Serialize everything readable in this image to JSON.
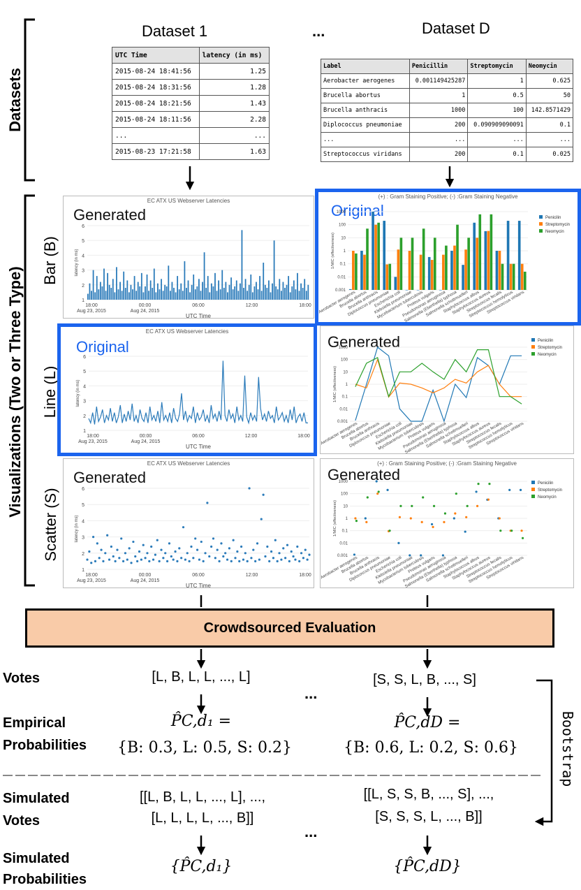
{
  "datasets_label": "Datasets",
  "visualizations_label": "Visualizations (Two or Three Type)",
  "row_labels": [
    "Bar (B)",
    "Line (L)",
    "Scatter (S)"
  ],
  "ellipsis": "...",
  "dataset1": {
    "title": "Dataset 1",
    "headers": [
      "UTC Time",
      "latency (in ms)"
    ],
    "rows": [
      [
        "2015-08-24 18:41:56",
        "1.25"
      ],
      [
        "2015-08-24 18:31:56",
        "1.28"
      ],
      [
        "2015-08-24 18:21:56",
        "1.43"
      ],
      [
        "2015-08-24 18:11:56",
        "2.28"
      ],
      [
        "...",
        "..."
      ],
      [
        "2015-08-23 17:21:58",
        "1.63"
      ]
    ]
  },
  "datasetD": {
    "title": "Dataset D",
    "headers": [
      "Label",
      "Penicillin",
      "Streptomycin",
      "Neomycin"
    ],
    "rows": [
      [
        "Aerobacter aerogenes",
        "0.001149425287",
        "1",
        "0.625"
      ],
      [
        "Brucella abortus",
        "1",
        "0.5",
        "50"
      ],
      [
        "Brucella anthracis",
        "1000",
        "100",
        "142.8571429"
      ],
      [
        "Diplococcus pneumoniae",
        "200",
        "0.090909090091",
        "0.1"
      ],
      [
        "...",
        "...",
        "...",
        "..."
      ],
      [
        "Streptococcus viridans",
        "200",
        "0.1",
        "0.025"
      ]
    ]
  },
  "latency_charts": {
    "title": "EC ATX US Webserver Latencies",
    "xlabel": "UTC Time",
    "ylabel": "latency (in ms)",
    "x_ticks": [
      "18:00\nAug 23, 2015",
      "00:00\nAug 24, 2015",
      "06:00",
      "12:00",
      "18:00"
    ],
    "y_ticks": [
      "1",
      "2",
      "3",
      "4",
      "5",
      "6"
    ],
    "bar_tag": "Generated",
    "line_tag": "Original",
    "scatter_tag": "Generated"
  },
  "antibiotic_charts": {
    "subtitle": "(+)  : Gram Staining Positive;   (-)  :Gram Staining Negative",
    "ylabel": "1/MIC (effectiveness)",
    "y_ticks": [
      "0.001",
      "0.01",
      "0.1",
      "1",
      "10",
      "100",
      "1000"
    ],
    "bar_tag": "Original",
    "line_tag": "Generated",
    "scatter_tag": "Generated",
    "legend": [
      "Penicilin",
      "Streptomycin",
      "Neomycin"
    ],
    "colors": [
      "#1f77b4",
      "#ff7f0e",
      "#2ca02c"
    ],
    "categories": [
      "Aerobacter aerogenes",
      "Brucella abortus",
      "Brucella anthracis",
      "Diplococcus pneumoniae",
      "Escherichia coli",
      "Klebsiella pneumoniae",
      "Mycobacterium tuberculosis",
      "Proteus vulgaris",
      "Pseudomonas aeruginosa",
      "Salmonella (Eberthella) typhosa",
      "Salmonella schottmuelleri",
      "Staphylococcus albus",
      "Staphylococcus aureus",
      "Streptococcus fecalis",
      "Streptococcus hemolyticus",
      "Streptococcus viridans"
    ]
  },
  "chart_data": [
    {
      "type": "bar",
      "title": "EC ATX US Webserver Latencies",
      "xlabel": "UTC Time",
      "ylabel": "latency (in ms)",
      "ylim": [
        1,
        6
      ],
      "values": [
        1.4,
        2.1,
        1.6,
        3.0,
        1.5,
        2.6,
        1.7,
        2.2,
        1.9,
        3.1,
        1.6,
        2.8,
        2.0,
        1.8,
        2.4,
        1.5,
        3.2,
        1.7,
        2.2,
        1.6,
        2.9,
        1.8,
        2.3,
        1.5,
        2.0,
        1.7,
        2.6,
        1.6,
        2.2,
        1.9,
        2.8,
        1.5,
        1.9,
        2.7,
        1.6,
        2.3,
        1.8,
        3.1,
        1.5,
        2.1,
        1.7,
        2.4,
        1.6,
        2.0,
        1.9,
        3.3,
        1.6,
        2.2,
        1.8,
        1.5,
        2.6,
        1.7,
        2.1,
        1.6,
        3.6,
        1.8,
        2.3,
        1.5,
        2.0,
        2.7,
        1.7,
        1.9,
        2.4,
        1.6,
        2.2,
        4.2,
        1.8,
        2.6,
        1.5,
        2.1,
        1.9,
        2.8,
        1.6,
        2.3,
        1.7,
        3.0,
        1.8,
        2.2,
        1.5,
        2.0,
        2.5,
        1.7,
        1.9,
        2.3,
        1.6,
        2.1,
        5.7,
        1.8,
        2.4,
        1.6,
        2.0,
        2.7,
        1.5,
        1.9,
        2.2,
        1.7,
        2.6,
        1.6,
        3.5,
        2.0,
        1.8,
        2.3,
        1.5,
        2.1,
        5.0,
        1.9,
        1.7,
        2.4,
        1.6,
        2.2,
        1.8,
        2.0,
        2.6,
        1.5,
        1.9,
        2.3,
        1.7,
        2.8,
        1.6,
        2.1,
        1.8,
        2.4,
        1.6,
        2.0
      ]
    },
    {
      "type": "line",
      "title": "EC ATX US Webserver Latencies",
      "xlabel": "UTC Time",
      "ylabel": "latency (in ms)",
      "ylim": [
        1,
        6
      ],
      "values": [
        1.8,
        1.5,
        2.2,
        1.4,
        2.6,
        1.6,
        1.9,
        2.4,
        1.5,
        2.0,
        1.7,
        2.5,
        1.6,
        2.2,
        1.5,
        1.9,
        2.7,
        1.5,
        2.1,
        1.6,
        2.3,
        1.7,
        2.8,
        1.6,
        2.0,
        1.5,
        2.4,
        1.8,
        1.6,
        2.2,
        1.5,
        2.6,
        1.7,
        2.0,
        1.6,
        2.3,
        1.5,
        2.9,
        1.7,
        2.0,
        1.6,
        2.2,
        1.5,
        2.5,
        1.8,
        1.6,
        2.1,
        3.5,
        1.7,
        2.3,
        1.6,
        2.0,
        1.8,
        2.6,
        1.5,
        2.2,
        1.7,
        1.9,
        2.4,
        1.6,
        2.0,
        1.5,
        2.7,
        1.8,
        2.1,
        1.6,
        2.3,
        1.7,
        5.7,
        2.0,
        1.6,
        2.4,
        1.8,
        2.1,
        1.5,
        2.6,
        1.7,
        2.0,
        1.6,
        4.7,
        1.9,
        1.5,
        2.2,
        1.7,
        2.0,
        1.6,
        4.6,
        2.5,
        1.7,
        2.1,
        1.6,
        2.3,
        1.8,
        2.0,
        1.5,
        2.6,
        1.7,
        1.9,
        2.2,
        1.6,
        2.0,
        1.5,
        2.4,
        1.7,
        2.6,
        1.5,
        1.9,
        2.1,
        1.6,
        2.2,
        1.5,
        1.5
      ]
    },
    {
      "type": "scatter",
      "title": "EC ATX US Webserver Latencies",
      "xlabel": "UTC Time",
      "ylabel": "latency (in ms)",
      "ylim": [
        1,
        6
      ],
      "values": [
        1.6,
        2.1,
        1.4,
        3.0,
        1.5,
        2.6,
        1.7,
        2.2,
        1.5,
        2.0,
        3.1,
        1.6,
        2.4,
        1.8,
        1.5,
        2.2,
        1.7,
        2.9,
        1.5,
        2.0,
        1.6,
        2.3,
        1.4,
        2.7,
        1.8,
        1.5,
        2.1,
        1.6,
        2.5,
        1.7,
        2.0,
        1.5,
        2.4,
        1.6,
        1.9,
        2.8,
        1.5,
        2.2,
        1.7,
        2.0,
        1.5,
        2.6,
        1.8,
        1.6,
        2.1,
        1.5,
        2.3,
        1.7,
        3.6,
        1.6,
        2.0,
        1.5,
        2.4,
        1.7,
        2.9,
        2.2,
        1.6,
        2.7,
        1.5,
        2.0,
        5.1,
        1.8,
        2.4,
        2.9,
        1.7,
        2.2,
        1.5,
        2.6,
        1.8,
        2.0,
        1.6,
        2.3,
        1.5,
        2.8,
        1.7,
        2.1,
        1.5,
        2.4,
        1.6,
        2.0,
        1.5,
        6.0,
        1.7,
        2.2,
        1.5,
        2.6,
        1.6,
        4.1,
        5.6,
        1.8,
        2.4,
        1.5,
        2.1,
        1.7,
        2.8,
        1.5,
        2.0,
        1.6,
        2.3,
        1.7,
        2.5,
        1.5,
        2.1,
        1.8,
        1.6,
        2.4,
        1.5,
        2.0,
        1.7,
        2.2,
        1.6,
        1.9
      ]
    },
    {
      "type": "bar",
      "subtitle": "(+)  : Gram Staining Positive;   (-)  :Gram Staining Negative",
      "ylabel": "1/MIC (effectiveness)",
      "scale": "log",
      "ylim": [
        0.001,
        1000
      ],
      "categories": [
        "Aerobacter aerogenes",
        "Brucella abortus",
        "Brucella anthracis",
        "Diplococcus pneumoniae",
        "Escherichia coli",
        "Klebsiella pneumoniae",
        "Mycobacterium tuberculosis",
        "Proteus vulgaris",
        "Pseudomonas aeruginosa",
        "Salmonella (Eberthella) typhosa",
        "Salmonella schottmuelleri",
        "Staphylococcus albus",
        "Staphylococcus aureus",
        "Streptococcus fecalis",
        "Streptococcus hemolyticus",
        "Streptococcus viridans"
      ],
      "series": [
        {
          "name": "Penicilin",
          "values": [
            0.001149,
            1,
            1000,
            200,
            0.01,
            0.001,
            0.001,
            0.333,
            0.001,
            1,
            0.0833,
            142.9,
            32.3,
            1,
            200,
            200
          ]
        },
        {
          "name": "Streptomycin",
          "values": [
            1,
            0.5,
            100,
            0.0909,
            1.25,
            1,
            0.5,
            0.2,
            0.5,
            2.5,
            1.25,
            10,
            33.3,
            1,
            0.1,
            0.1
          ]
        },
        {
          "name": "Neomycin",
          "values": [
            0.625,
            50,
            142.86,
            0.1,
            10,
            10,
            50,
            10,
            2.5,
            100,
            10,
            625,
            625,
            0.1,
            0.1,
            0.025
          ]
        }
      ]
    },
    {
      "type": "line",
      "subtitle": "(+)  : Gram Staining Positive;   (-)  :Gram Staining Negative",
      "ylabel": "1/MIC (effectiveness)",
      "scale": "log",
      "ylim": [
        0.001,
        1000
      ],
      "categories": [
        "Aerobacter aerogenes",
        "Brucella abortus",
        "Brucella anthracis",
        "Diplococcus pneumoniae",
        "Escherichia coli",
        "Klebsiella pneumoniae",
        "Mycobacterium tuberculosis",
        "Proteus vulgaris",
        "Pseudomonas aeruginosa",
        "Salmonella (Eberthella) typhosa",
        "Salmonella schottmuelleri",
        "Staphylococcus albus",
        "Staphylococcus aureus",
        "Streptococcus fecalis",
        "Streptococcus hemolyticus",
        "Streptococcus viridans"
      ],
      "series": [
        {
          "name": "Penicilin",
          "values": [
            0.001149,
            1,
            1000,
            200,
            0.01,
            0.001,
            0.001,
            0.333,
            0.001,
            1,
            0.0833,
            142.9,
            32.3,
            1,
            200,
            200
          ]
        },
        {
          "name": "Streptomycin",
          "values": [
            1,
            0.5,
            100,
            0.0909,
            1.25,
            1,
            0.5,
            0.2,
            0.5,
            2.5,
            1.25,
            10,
            33.3,
            1,
            0.1,
            0.1
          ]
        },
        {
          "name": "Neomycin",
          "values": [
            0.625,
            50,
            142.86,
            0.1,
            10,
            10,
            50,
            10,
            2.5,
            100,
            10,
            625,
            625,
            0.1,
            0.1,
            0.025
          ]
        }
      ]
    },
    {
      "type": "scatter",
      "subtitle": "(+)  : Gram Staining Positive;   (-)  :Gram Staining Negative",
      "ylabel": "1/MIC (effectiveness)",
      "scale": "log",
      "ylim": [
        0.001,
        1000
      ],
      "categories": [
        "Aerobacter aerogenes",
        "Brucella abortus",
        "Brucella anthracis",
        "Diplococcus pneumoniae",
        "Escherichia coli",
        "Klebsiella pneumoniae",
        "Mycobacterium tuberculosis",
        "Proteus vulgaris",
        "Pseudomonas aeruginosa",
        "Salmonella (Eberthella) typhosa",
        "Salmonella schottmuelleri",
        "Staphylococcus albus",
        "Staphylococcus aureus",
        "Streptococcus fecalis",
        "Streptococcus hemolyticus",
        "Streptococcus viridans"
      ],
      "series": [
        {
          "name": "Penicilin",
          "values": [
            0.001149,
            1,
            1000,
            200,
            0.01,
            0.001,
            0.001,
            0.333,
            0.001,
            1,
            0.0833,
            142.9,
            32.3,
            1,
            200,
            200
          ]
        },
        {
          "name": "Streptomycin",
          "values": [
            1,
            0.5,
            100,
            0.0909,
            1.25,
            1,
            0.5,
            0.2,
            0.5,
            2.5,
            1.25,
            10,
            33.3,
            1,
            0.1,
            0.1
          ]
        },
        {
          "name": "Neomycin",
          "values": [
            0.625,
            50,
            142.86,
            0.1,
            10,
            10,
            50,
            10,
            2.5,
            100,
            10,
            625,
            625,
            0.1,
            0.1,
            0.025
          ]
        }
      ]
    }
  ],
  "crowd_label": "Crowdsourced Evaluation",
  "votes": {
    "label": "Votes",
    "d1": "[L, B, L, L, ..., L]",
    "dD": "[S, S, L, B, ..., S]"
  },
  "empirical": {
    "label_line1": "Empirical",
    "label_line2": "Probabilities",
    "d1_line1": "P̂C,d₁ =",
    "d1_line2": "{B: 0.3, L: 0.5, S: 0.2}",
    "dD_line1": "P̂C,dD =",
    "dD_line2": "{B: 0.6, L: 0.2, S: 0.6}"
  },
  "bootstrap_label": "Bootstrap",
  "simulated_votes": {
    "label_line1": "Simulated",
    "label_line2": "Votes",
    "d1_line1": "[[L, B, L, L, ..., L], ...,",
    "d1_line2": "[L, L, L, L, ..., B]]",
    "dD_line1": "[[L, S, S, B, ..., S], ...,",
    "dD_line2": "[S, S, S, L, ..., B]]"
  },
  "simulated_probs": {
    "label_line1": "Simulated",
    "label_line2": "Probabilities",
    "d1": "{P̂C,d₁}",
    "dD": "{P̂C,dD}"
  }
}
